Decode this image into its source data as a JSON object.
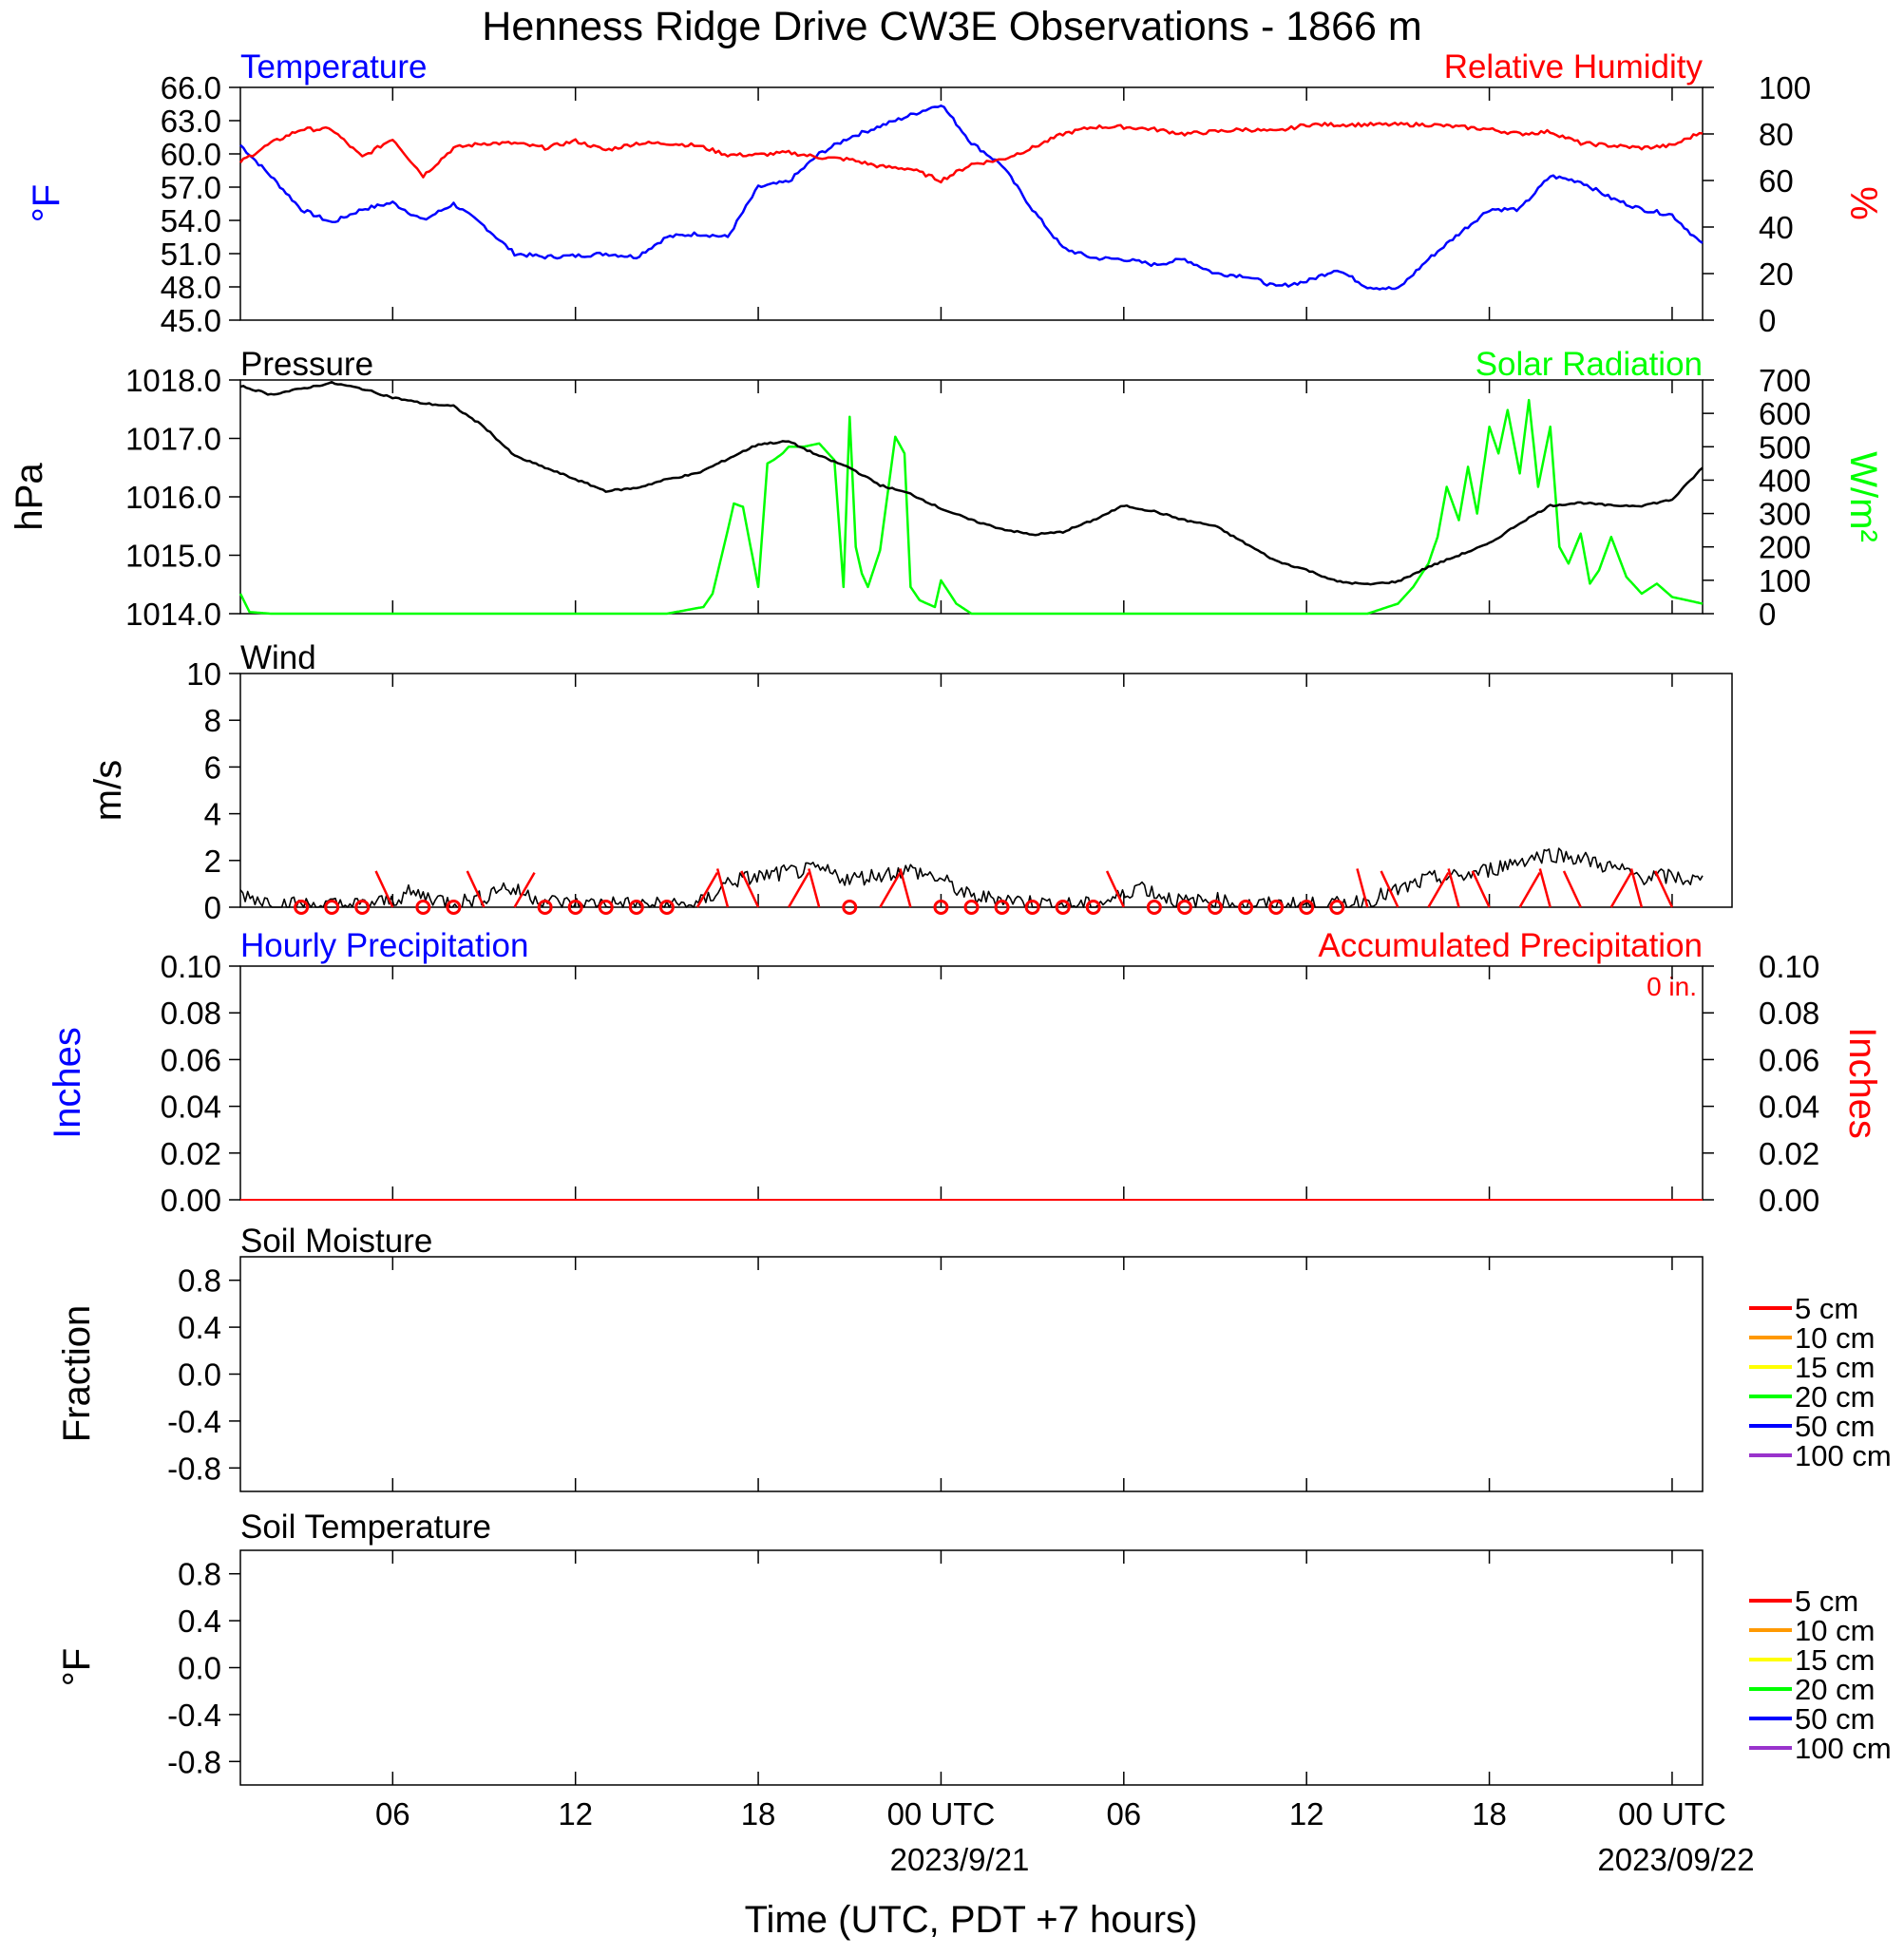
{
  "title": "Henness Ridge Drive CW3E Observations - 1866 m",
  "xlabel": "Time (UTC, PDT +7 hours)",
  "x_ticks": [
    "06",
    "12",
    "18",
    "00 UTC",
    "06",
    "12",
    "18",
    "00 UTC"
  ],
  "date_labels": [
    "2023/9/21",
    "2023/09/22"
  ],
  "colors": {
    "temperature": "#0000ff",
    "humidity": "#ff0000",
    "pressure": "#000000",
    "solar": "#00ff00",
    "wind": "#000000",
    "barb": "#ff0000",
    "hourly_precip": "#0000ff",
    "accum_precip": "#ff0000"
  },
  "panels": {
    "temperature": {
      "title_left": "Temperature",
      "title_right": "Relative Humidity",
      "ylabel_left": "°F",
      "ylabel_right": "%",
      "yticks_left": [
        "66.0",
        "63.0",
        "60.0",
        "57.0",
        "54.0",
        "51.0",
        "48.0",
        "45.0"
      ],
      "yticks_right": [
        "100",
        "80",
        "60",
        "40",
        "20",
        "0"
      ]
    },
    "pressure": {
      "title_left": "Pressure",
      "title_right": "Solar Radiation",
      "ylabel_left": "hPa",
      "ylabel_right": "W/m²",
      "yticks_left": [
        "1018.0",
        "1017.0",
        "1016.0",
        "1015.0",
        "1014.0"
      ],
      "yticks_right": [
        "700",
        "600",
        "500",
        "400",
        "300",
        "200",
        "100",
        "0"
      ]
    },
    "wind": {
      "title_left": "Wind",
      "ylabel_left": "m/s",
      "yticks_left": [
        "10",
        "8",
        "6",
        "4",
        "2",
        "0"
      ]
    },
    "precip": {
      "title_left": "Hourly Precipitation",
      "title_right": "Accumulated Precipitation",
      "total_label": "0 in.",
      "ylabel_left": "Inches",
      "ylabel_right": "Inches",
      "yticks_left": [
        "0.10",
        "0.08",
        "0.06",
        "0.04",
        "0.02",
        "0.00"
      ],
      "yticks_right": [
        "0.10",
        "0.08",
        "0.06",
        "0.04",
        "0.02",
        "0.00"
      ]
    },
    "soil_moisture": {
      "title_left": "Soil Moisture",
      "ylabel_left": "Fraction",
      "yticks_left": [
        "0.8",
        "0.4",
        "0.0",
        "-0.4",
        "-0.8"
      ],
      "legend": [
        {
          "label": "5 cm",
          "color": "#ff0000"
        },
        {
          "label": "10 cm",
          "color": "#ff9900"
        },
        {
          "label": "15 cm",
          "color": "#ffff00"
        },
        {
          "label": "20 cm",
          "color": "#00ff00"
        },
        {
          "label": "50 cm",
          "color": "#0000ff"
        },
        {
          "label": "100 cm",
          "color": "#9933cc"
        }
      ]
    },
    "soil_temperature": {
      "title_left": "Soil Temperature",
      "ylabel_left": "°F",
      "yticks_left": [
        "0.8",
        "0.4",
        "0.0",
        "-0.4",
        "-0.8"
      ],
      "legend": [
        {
          "label": "5 cm",
          "color": "#ff0000"
        },
        {
          "label": "10 cm",
          "color": "#ff9900"
        },
        {
          "label": "15 cm",
          "color": "#ffff00"
        },
        {
          "label": "20 cm",
          "color": "#00ff00"
        },
        {
          "label": "50 cm",
          "color": "#0000ff"
        },
        {
          "label": "100 cm",
          "color": "#9933cc"
        }
      ]
    }
  },
  "chart_data": [
    {
      "type": "line",
      "x_unit": "hours since 2023-09-20 01:00 UTC",
      "series": [
        {
          "name": "Temperature",
          "axis": "left",
          "unit": "°F",
          "ylim": [
            45,
            66
          ],
          "x": [
            0,
            1,
            2,
            3,
            4,
            5,
            6,
            7,
            8,
            9,
            10,
            11,
            12,
            13,
            14,
            15,
            16,
            17,
            18,
            19,
            20,
            21,
            22,
            23,
            24,
            25,
            26,
            27,
            28,
            29,
            30,
            31,
            32,
            33,
            34,
            35,
            36,
            37,
            38,
            39,
            40,
            41,
            42,
            43,
            44,
            45,
            46,
            47,
            48
          ],
          "y": [
            60.8,
            58,
            55,
            53.8,
            55,
            55.6,
            54,
            55.5,
            53.5,
            51,
            50.7,
            50.8,
            51,
            50.7,
            52.5,
            52.8,
            52.5,
            57,
            57.5,
            60,
            61.5,
            62.5,
            63.5,
            64.5,
            61,
            59,
            55,
            51.5,
            50.6,
            50.5,
            50,
            50.5,
            49.2,
            49,
            48,
            48.5,
            49.6,
            48,
            47.8,
            50.5,
            52.8,
            55,
            55,
            58,
            57.5,
            56,
            55,
            54.5,
            51.8
          ]
        },
        {
          "name": "Relative Humidity",
          "axis": "right",
          "unit": "%",
          "ylim": [
            0,
            100
          ],
          "x": [
            0,
            1,
            2,
            3,
            4,
            5,
            6,
            7,
            8,
            9,
            10,
            11,
            12,
            13,
            14,
            15,
            16,
            17,
            18,
            19,
            20,
            21,
            22,
            23,
            24,
            25,
            26,
            27,
            28,
            29,
            30,
            31,
            32,
            33,
            34,
            35,
            36,
            37,
            38,
            39,
            40,
            41,
            42,
            43,
            44,
            45,
            46,
            47,
            48
          ],
          "y": [
            68,
            76,
            82,
            82,
            70,
            78,
            62,
            74,
            76,
            76,
            74,
            77,
            73,
            76,
            76,
            75,
            71,
            71,
            72,
            70,
            69,
            66,
            65,
            60,
            67,
            69,
            74,
            80,
            83,
            83,
            82,
            80,
            81,
            82,
            81,
            84,
            84,
            84,
            84,
            84,
            83,
            82,
            80,
            81,
            76,
            75,
            74,
            75,
            81
          ]
        }
      ]
    },
    {
      "type": "line",
      "x_unit": "hours since 2023-09-20 01:00 UTC",
      "series": [
        {
          "name": "Pressure",
          "axis": "left",
          "unit": "hPa",
          "ylim": [
            1014,
            1018
          ],
          "x": [
            0,
            1,
            2,
            3,
            4,
            5,
            6,
            7,
            8,
            9,
            10,
            11,
            12,
            13,
            14,
            15,
            16,
            17,
            18,
            19,
            20,
            21,
            22,
            23,
            24,
            25,
            26,
            27,
            28,
            29,
            30,
            31,
            32,
            33,
            34,
            35,
            36,
            37,
            38,
            39,
            40,
            41,
            42,
            43,
            44,
            45,
            46,
            47,
            48
          ],
          "y": [
            1017.9,
            1017.75,
            1017.85,
            1017.95,
            1017.85,
            1017.7,
            1017.6,
            1017.55,
            1017.2,
            1016.7,
            1016.5,
            1016.3,
            1016.1,
            1016.15,
            1016.3,
            1016.4,
            1016.65,
            1016.9,
            1016.95,
            1016.7,
            1016.5,
            1016.2,
            1016.05,
            1015.8,
            1015.6,
            1015.45,
            1015.35,
            1015.4,
            1015.6,
            1015.85,
            1015.75,
            1015.6,
            1015.5,
            1015.2,
            1014.9,
            1014.75,
            1014.55,
            1014.5,
            1014.55,
            1014.8,
            1015.0,
            1015.2,
            1015.55,
            1015.85,
            1015.9,
            1015.85,
            1015.85,
            1015.95,
            1016.5
          ]
        },
        {
          "name": "Solar Radiation",
          "axis": "right",
          "unit": "W/m²",
          "ylim": [
            0,
            700
          ],
          "x": [
            0,
            0.3,
            1,
            14,
            15.2,
            15.5,
            16,
            16.2,
            16.5,
            17,
            17.3,
            17.5,
            17.8,
            18,
            18.5,
            19,
            19.5,
            19.8,
            20,
            20.2,
            20.4,
            20.6,
            21,
            21.5,
            21.8,
            22,
            22.3,
            22.8,
            23,
            23.5,
            24,
            24.5,
            24.8,
            25,
            25.5,
            26,
            37,
            38,
            38.5,
            39,
            39.3,
            39.6,
            40,
            40.3,
            40.6,
            41,
            41.3,
            41.6,
            42,
            42.3,
            42.6,
            43,
            43.3,
            43.6,
            44,
            44.3,
            44.6,
            45,
            45.5,
            46,
            46.5,
            47,
            47.5,
            48
          ],
          "y": [
            60,
            5,
            0,
            0,
            20,
            60,
            250,
            330,
            320,
            80,
            450,
            460,
            480,
            500,
            500,
            510,
            460,
            80,
            590,
            200,
            120,
            80,
            190,
            530,
            480,
            80,
            40,
            20,
            100,
            30,
            0,
            0,
            0,
            0,
            0,
            0,
            0,
            30,
            80,
            150,
            230,
            380,
            280,
            440,
            300,
            560,
            480,
            610,
            420,
            640,
            380,
            560,
            200,
            150,
            240,
            90,
            130,
            230,
            110,
            60,
            90,
            50,
            40,
            30
          ]
        }
      ]
    },
    {
      "type": "line",
      "x_unit": "hours since 2023-09-20 01:00 UTC",
      "series": [
        {
          "name": "Wind",
          "unit": "m/s",
          "ylim": [
            0,
            10
          ],
          "x": [
            0,
            1,
            2,
            3,
            4,
            5,
            5.5,
            6,
            7,
            8,
            8.5,
            9,
            10,
            11,
            12,
            13,
            14,
            15,
            15.5,
            16,
            17,
            18,
            19,
            20,
            21,
            22,
            23,
            24,
            25,
            26,
            27,
            28,
            29,
            29.5,
            30,
            31,
            32,
            33,
            34,
            35,
            36,
            37,
            38,
            39,
            40,
            41,
            42,
            43,
            44,
            45,
            46,
            47,
            48
          ],
          "y": [
            0.6,
            0.2,
            0.1,
            0.1,
            0.1,
            0.3,
            0.6,
            0.5,
            0.2,
            0.4,
            0.9,
            0.7,
            0.3,
            0.1,
            0.2,
            0.1,
            0.1,
            0.1,
            0.5,
            1.1,
            1.3,
            1.5,
            1.6,
            1.2,
            1.4,
            1.6,
            1.2,
            0.4,
            0.4,
            0.2,
            0.1,
            0.1,
            0.5,
            1.0,
            0.6,
            0.2,
            0.3,
            0.1,
            0.1,
            0.1,
            0.1,
            0.3,
            0.7,
            1.2,
            1.3,
            1.6,
            2.0,
            2.3,
            2.1,
            1.7,
            1.3,
            1.3,
            1.1
          ]
        }
      ],
      "barbs_x": [
        2,
        3,
        4,
        5,
        6,
        7,
        8,
        9,
        10,
        11,
        12,
        13,
        14,
        15,
        16,
        17,
        18,
        19,
        20,
        21,
        22,
        23,
        24,
        25,
        26,
        27,
        28,
        29,
        30,
        31,
        32,
        33,
        34,
        35,
        36,
        37,
        38,
        39,
        40,
        41,
        42,
        43,
        44,
        45,
        46,
        47
      ],
      "calm_x": [
        2,
        3,
        4,
        6,
        7,
        10,
        11,
        12,
        13,
        14,
        20,
        23,
        24,
        25,
        26,
        27,
        28,
        30,
        31,
        32,
        33,
        34,
        35,
        36
      ]
    },
    {
      "type": "line",
      "x_unit": "hours since 2023-09-20 01:00 UTC",
      "series": [
        {
          "name": "Hourly Precipitation",
          "axis": "left",
          "unit": "in",
          "ylim": [
            0,
            0.1
          ],
          "x": [
            0,
            48
          ],
          "y": [
            0,
            0
          ]
        },
        {
          "name": "Accumulated Precipitation",
          "axis": "right",
          "unit": "in",
          "ylim": [
            0,
            0.1
          ],
          "x": [
            0,
            48
          ],
          "y": [
            0,
            0
          ]
        }
      ]
    },
    {
      "type": "line",
      "ylim": [
        -1,
        1
      ],
      "series": []
    },
    {
      "type": "line",
      "ylim": [
        -1,
        1
      ],
      "series": []
    }
  ]
}
